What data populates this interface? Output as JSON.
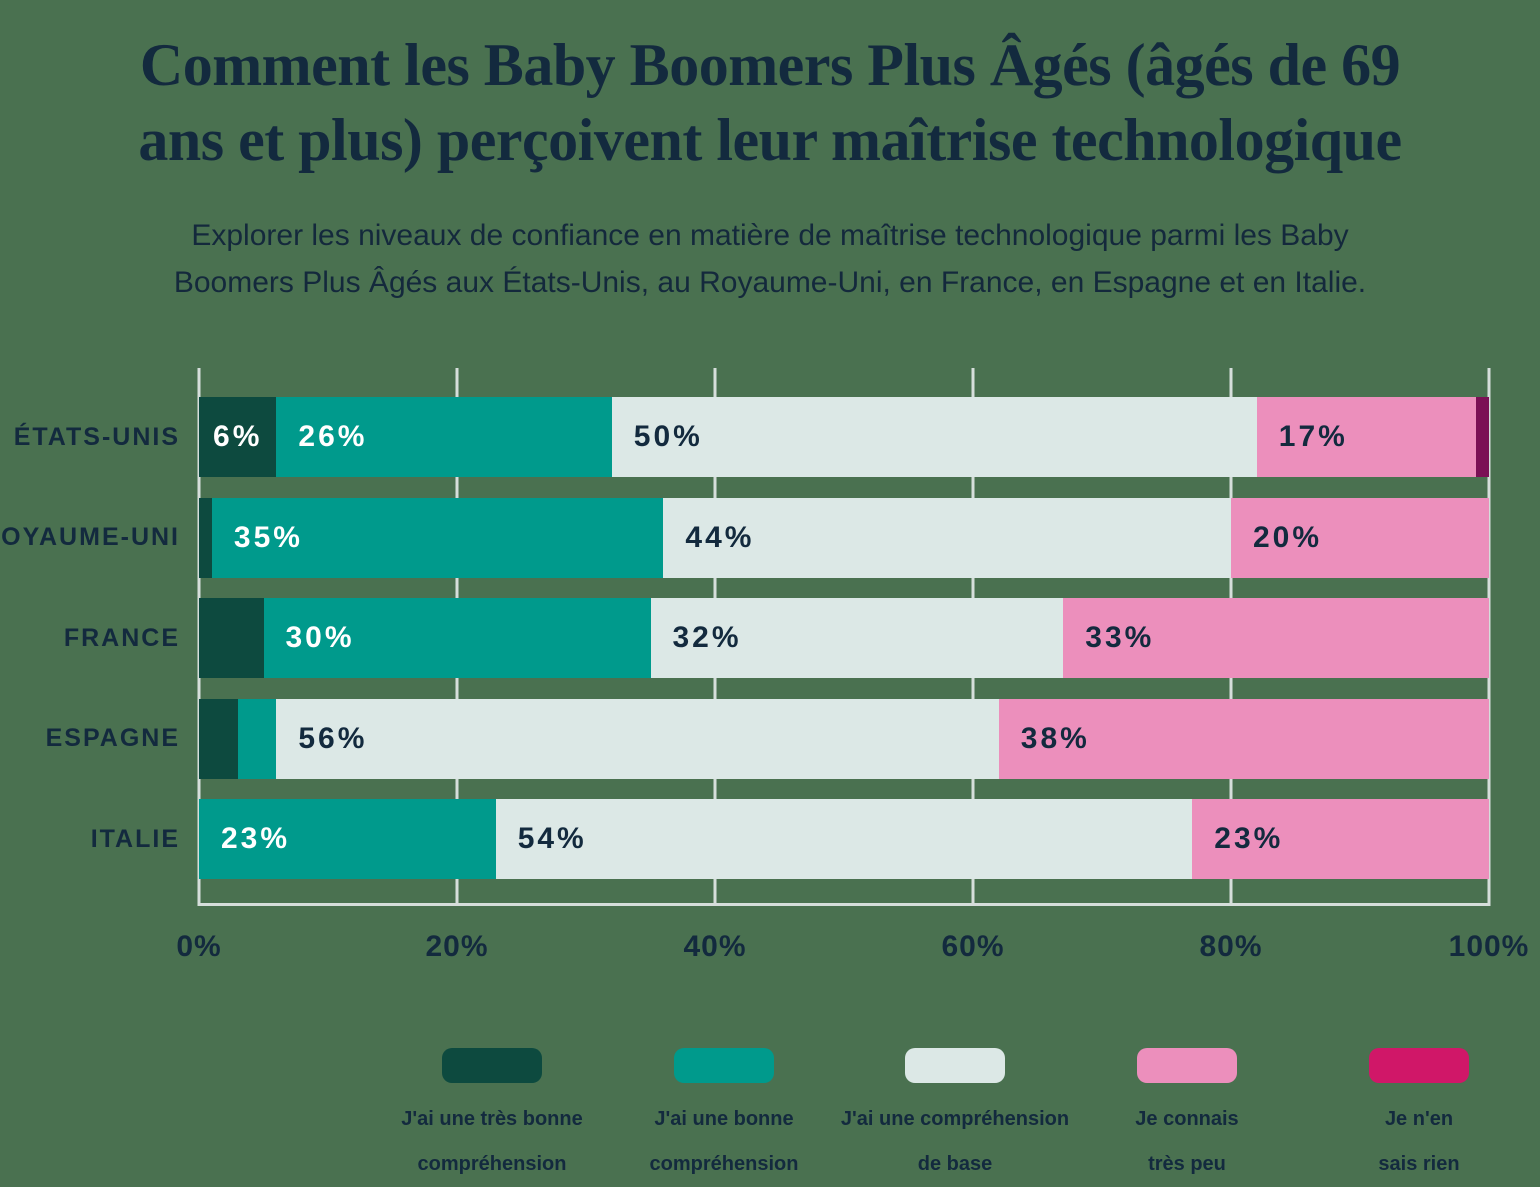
{
  "title": {
    "line1": "Comment les Baby Boomers Plus Âgés (âgés de 69",
    "line2": "ans et plus) perçoivent leur maîtrise technologique"
  },
  "subtitle": {
    "line1": "Explorer les niveaux de confiance en matière de maîtrise technologique parmi les Baby",
    "line2": "Boomers Plus Âgés aux États-Unis, au Royaume-Uni, en France, en Espagne et en Italie."
  },
  "colors": {
    "background": "#4a7150",
    "very_good": "#0d4a3f",
    "good": "#009a8c",
    "basic": "#dce8e6",
    "little": "#ec8fbc",
    "nothing": "#7b1055",
    "nothing_legend": "#d01768",
    "text_dark": "#132a3e",
    "text_light": "#ffffff",
    "gridline": "#d6dedb"
  },
  "chart_data": {
    "type": "bar",
    "variant": "horizontal-stacked-100",
    "title": "Comment les Baby Boomers Plus Âgés (âgés de 69 ans et plus) perçoivent leur maîtrise technologique",
    "categories": [
      "ÉTATS-UNIS",
      "ROYAUME-UNI",
      "FRANCE",
      "ESPAGNE",
      "ITALIE"
    ],
    "series": [
      {
        "name": "J'ai une très bonne compréhension",
        "color_key": "very_good",
        "label_color_key": "text_light",
        "values": [
          6,
          1,
          5,
          3,
          0
        ]
      },
      {
        "name": "J'ai une bonne compréhension",
        "color_key": "good",
        "label_color_key": "text_light",
        "values": [
          26,
          35,
          30,
          3,
          23
        ]
      },
      {
        "name": "J'ai une compréhension de base",
        "color_key": "basic",
        "label_color_key": "text_dark",
        "values": [
          50,
          44,
          32,
          56,
          54
        ]
      },
      {
        "name": "Je connais très peu",
        "color_key": "little",
        "label_color_key": "text_dark",
        "values": [
          17,
          20,
          33,
          38,
          23
        ]
      },
      {
        "name": "Je n'en sais rien",
        "color_key": "nothing",
        "label_color_key": "text_light",
        "values": [
          1,
          0,
          0,
          0,
          0
        ]
      }
    ],
    "label_suffix": "%",
    "label_min_value_shown": 6,
    "xlim": [
      0,
      100
    ],
    "x_tick_values": [
      0,
      20,
      40,
      60,
      80,
      100
    ],
    "x_tick_labels": [
      "0%",
      "20%",
      "40%",
      "60%",
      "80%",
      "100%"
    ],
    "grid": "vertical",
    "legend_position": "bottom"
  },
  "legend": {
    "items": [
      {
        "line1": "J'ai une très bonne",
        "line2": "compréhension",
        "color_key": "very_good"
      },
      {
        "line1": "J'ai une bonne",
        "line2": "compréhension",
        "color_key": "good"
      },
      {
        "line1": "J'ai une compréhension",
        "line2": "de base",
        "color_key": "basic"
      },
      {
        "line1": "Je connais",
        "line2": "très peu",
        "color_key": "little"
      },
      {
        "line1": "Je n'en",
        "line2": "sais rien",
        "color_key": "nothing_legend"
      }
    ]
  }
}
